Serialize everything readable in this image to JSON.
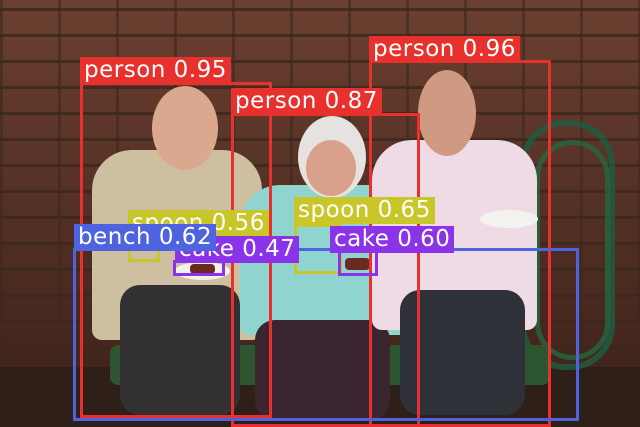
{
  "detections": [
    {
      "label": "person",
      "score": "0.95",
      "text": "person 0.95",
      "color": "#e8302c"
    },
    {
      "label": "person",
      "score": "0.87",
      "text": "person 0.87",
      "color": "#e8302c"
    },
    {
      "label": "person",
      "score": "0.96",
      "text": "person 0.96",
      "color": "#e8302c"
    },
    {
      "label": "bench",
      "score": "0.62",
      "text": "bench 0.62",
      "color": "#4d63e0"
    },
    {
      "label": "spoon",
      "score": "0.65",
      "text": "spoon 0.65",
      "color": "#c8c628"
    },
    {
      "label": "spoon",
      "score": "0.56",
      "text": "spoon 0.56",
      "color": "#c8c628"
    },
    {
      "label": "cake",
      "score": "0.60",
      "text": "cake 0.60",
      "color": "#8a33e8"
    },
    {
      "label": "cake",
      "score": "0.47",
      "text": "cake 0.47",
      "color": "#8a33e8"
    }
  ]
}
